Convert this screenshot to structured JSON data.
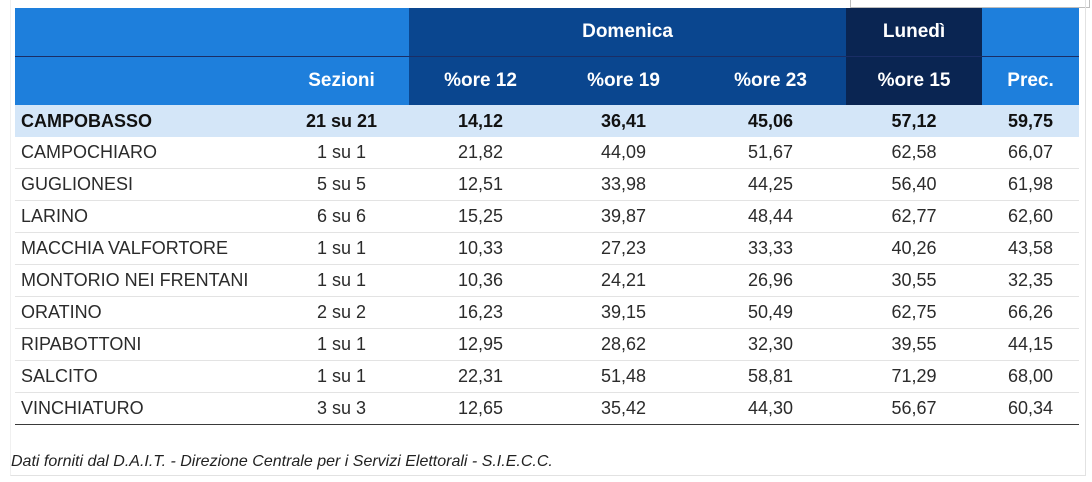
{
  "header": {
    "group_sunday": "Domenica",
    "group_monday": "Lunedì",
    "columns": [
      "",
      "Sezioni",
      "%ore 12",
      "%ore 19",
      "%ore 23",
      "%ore 15",
      "Prec."
    ]
  },
  "rows": [
    [
      "CAMPOBASSO",
      "21 su 21",
      "14,12",
      "36,41",
      "45,06",
      "57,12",
      "59,75"
    ],
    [
      "CAMPOCHIARO",
      "1 su 1",
      "21,82",
      "44,09",
      "51,67",
      "62,58",
      "66,07"
    ],
    [
      "GUGLIONESI",
      "5 su 5",
      "12,51",
      "33,98",
      "44,25",
      "56,40",
      "61,98"
    ],
    [
      "LARINO",
      "6 su 6",
      "15,25",
      "39,87",
      "48,44",
      "62,77",
      "62,60"
    ],
    [
      "MACCHIA VALFORTORE",
      "1 su 1",
      "10,33",
      "27,23",
      "33,33",
      "40,26",
      "43,58"
    ],
    [
      "MONTORIO NEI FRENTANI",
      "1 su 1",
      "10,36",
      "24,21",
      "26,96",
      "30,55",
      "32,35"
    ],
    [
      "ORATINO",
      "2 su 2",
      "16,23",
      "39,15",
      "50,49",
      "62,75",
      "66,26"
    ],
    [
      "RIPABOTTONI",
      "1 su 1",
      "12,95",
      "28,62",
      "32,30",
      "39,55",
      "44,15"
    ],
    [
      "SALCITO",
      "1 su 1",
      "22,31",
      "51,48",
      "58,81",
      "71,29",
      "68,00"
    ],
    [
      "VINCHIATURO",
      "3 su 3",
      "12,65",
      "35,42",
      "44,30",
      "56,67",
      "60,34"
    ]
  ],
  "footnote": "Dati forniti dal D.A.I.T. - Direzione Centrale per i Servizi Elettorali - S.I.E.C.C.",
  "colors": {
    "header_light": "#1e7fdc",
    "header_mid": "#0a468f",
    "header_dark": "#0a2552",
    "total_row": "#d4e6f8"
  }
}
